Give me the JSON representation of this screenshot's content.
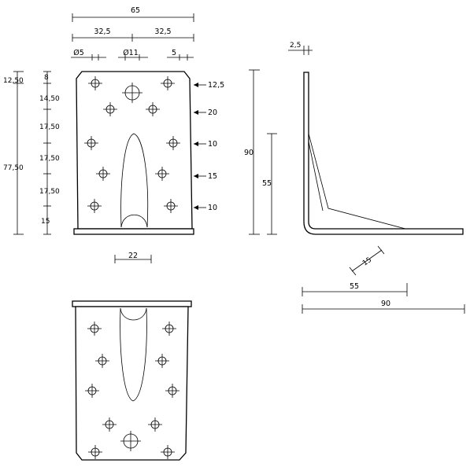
{
  "front_view": {
    "dims_top": {
      "overall": "65",
      "half_left": "32,5",
      "half_right": "32,5"
    },
    "hole_labels": {
      "small": "Ø5",
      "large": "Ø11",
      "edge": "5"
    },
    "dims_left_inner": [
      "12,50",
      "8",
      "14,50",
      "17,50",
      "17,50",
      "17,50",
      "15"
    ],
    "dim_left_total": "77,50",
    "dims_right": [
      "12,5",
      "20",
      "10",
      "15",
      "10"
    ],
    "dim_slot_width": "22"
  },
  "side_view": {
    "dim_thickness": "2,5",
    "dim_height_total": "90",
    "dim_height_rib": "55",
    "dim_radius": "15",
    "dim_base_rib": "55",
    "dim_base_total": "90"
  }
}
